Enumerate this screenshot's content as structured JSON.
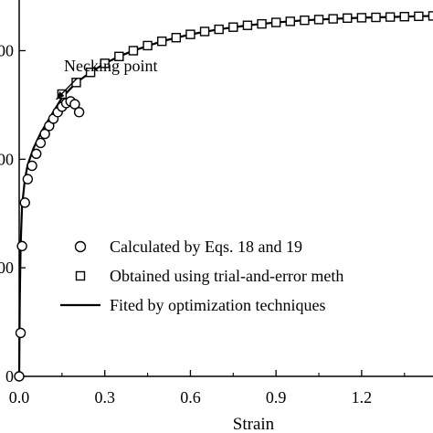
{
  "chart_data": {
    "type": "scatter",
    "xlabel": "Strain",
    "ylabel": "",
    "xlim": [
      0,
      1.45
    ],
    "ylim": [
      0,
      1040
    ],
    "x_ticks": [
      0.0,
      0.3,
      0.6,
      0.9,
      1.2
    ],
    "x_tick_labels": [
      "0.0",
      "0.3",
      "0.6",
      "0.9",
      "1.2"
    ],
    "y_ticks": [
      0,
      300,
      600,
      900
    ],
    "y_tick_labels": [
      "0",
      "00",
      "00",
      "00"
    ],
    "grid": false,
    "legend_position": "bottom-right",
    "annotation": {
      "text": "Necking point",
      "x": 0.13,
      "y": 765
    },
    "series": [
      {
        "name": "Calculated by Eqs. 18 and 19",
        "kind": "scatter",
        "marker": "circle",
        "x": [
          0.0,
          0.005,
          0.01,
          0.02,
          0.03,
          0.045,
          0.06,
          0.075,
          0.09,
          0.105,
          0.12,
          0.135,
          0.15,
          0.165,
          0.18,
          0.195,
          0.21
        ],
        "y": [
          0,
          120,
          360,
          480,
          545,
          582,
          615,
          645,
          670,
          692,
          712,
          730,
          745,
          755,
          760,
          752,
          730
        ]
      },
      {
        "name": "Obtained using trial-and-error meth",
        "kind": "scatter",
        "marker": "square",
        "x": [
          0.15,
          0.2,
          0.25,
          0.3,
          0.35,
          0.4,
          0.45,
          0.5,
          0.55,
          0.6,
          0.65,
          0.7,
          0.75,
          0.8,
          0.85,
          0.9,
          0.95,
          1.0,
          1.05,
          1.1,
          1.15,
          1.2,
          1.25,
          1.3,
          1.35,
          1.4,
          1.45
        ],
        "y": [
          780,
          812,
          840,
          865,
          884,
          900,
          914,
          926,
          936,
          945,
          953,
          959,
          965,
          970,
          974,
          978,
          981,
          984,
          986,
          988,
          990,
          991,
          992,
          993,
          994,
          995,
          996
        ]
      },
      {
        "name": "Fited by optimization techniques",
        "kind": "line",
        "x": [
          0.0,
          0.002,
          0.005,
          0.01,
          0.02,
          0.03,
          0.05,
          0.075,
          0.1,
          0.15,
          0.2,
          0.25,
          0.3,
          0.35,
          0.4,
          0.5,
          0.6,
          0.7,
          0.8,
          0.9,
          1.0,
          1.1,
          1.2,
          1.3,
          1.4,
          1.45
        ],
        "y": [
          0,
          200,
          360,
          470,
          545,
          585,
          630,
          672,
          705,
          770,
          812,
          840,
          865,
          884,
          900,
          926,
          945,
          959,
          970,
          978,
          984,
          988,
          991,
          993,
          995,
          996
        ]
      }
    ]
  }
}
